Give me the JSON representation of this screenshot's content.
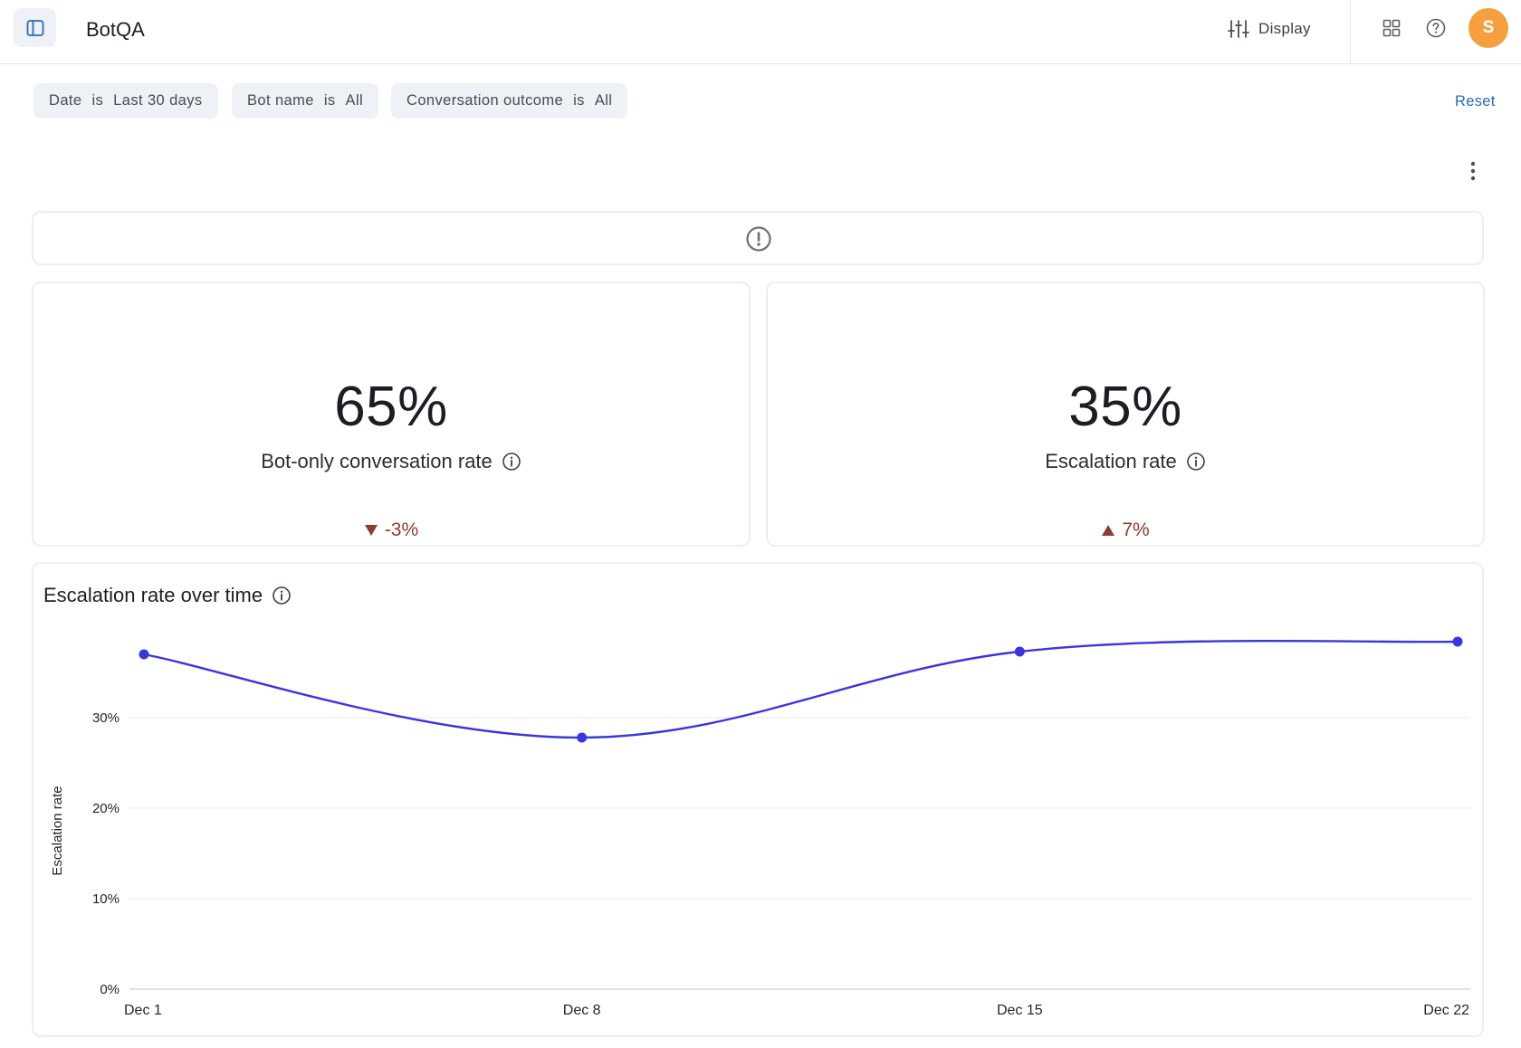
{
  "header": {
    "title": "BotQA",
    "display_label": "Display",
    "avatar_initial": "S",
    "icons": [
      "sidebar-toggle-icon",
      "sliders-icon",
      "grid-icon",
      "help-icon"
    ]
  },
  "filters": [
    {
      "field": "Date",
      "op": "is",
      "value": "Last 30 days"
    },
    {
      "field": "Bot name",
      "op": "is",
      "value": "All"
    },
    {
      "field": "Conversation outcome",
      "op": "is",
      "value": "All"
    }
  ],
  "reset_label": "Reset",
  "kpis": [
    {
      "value": "65%",
      "label": "Bot-only conversation rate",
      "change": "-3%",
      "direction": "down"
    },
    {
      "value": "35%",
      "label": "Escalation rate",
      "change": "7%",
      "direction": "up"
    }
  ],
  "colors": {
    "accent": "#3b35e0",
    "negative": "#8f3b33",
    "avatar": "#f5a03f",
    "link": "#2a6bb6"
  },
  "chart_data": {
    "type": "line",
    "title": "Escalation rate over time",
    "ylabel": "Escalation rate",
    "xlabel": "",
    "x": [
      "Dec 1",
      "Dec 8",
      "Dec 15",
      "Dec 22"
    ],
    "series": [
      {
        "values": [
          37,
          27.8,
          37.3,
          38.4
        ]
      }
    ],
    "ylim": [
      0,
      40
    ],
    "yticks": [
      0,
      10,
      20,
      30
    ],
    "ytick_labels": [
      "0%",
      "10%",
      "20%",
      "30%"
    ],
    "grid": true,
    "legend": "none"
  }
}
